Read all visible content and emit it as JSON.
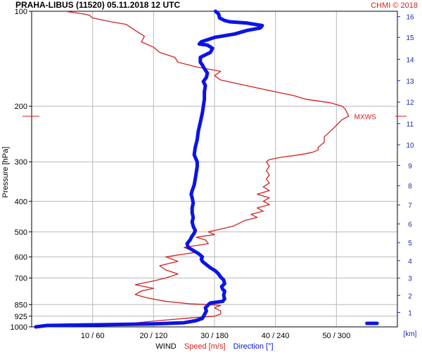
{
  "header": {
    "title": "PRAHA-LIBUS (11520)    05.11.2018 12 UTC",
    "credit": "CHMI © 2018"
  },
  "colors": {
    "speed": "#d42020",
    "direction": "#0a14e6",
    "km_axis": "#1a2aaa",
    "grid": "#b8b8b8",
    "frame": "#000000",
    "credit": "#d42020"
  },
  "chart_data": {
    "type": "line",
    "title": "PRAHA-LIBUS (11520)    05.11.2018 12 UTC",
    "y_axis": {
      "label": "Pressure [hPa]",
      "scale": "log",
      "range": [
        1000,
        100
      ],
      "ticks": [
        100,
        200,
        300,
        400,
        500,
        600,
        700,
        850,
        925,
        1000
      ]
    },
    "x_axis": {
      "label_prefix": "WIND",
      "label_speed": "Speed [m/s]",
      "label_direction": "Direction [°]",
      "speed_range": [
        0,
        60
      ],
      "direction_range": [
        0,
        360
      ],
      "ticks": [
        "10 / 60",
        "20 / 120",
        "30 / 180",
        "40 / 240",
        "50 / 300"
      ]
    },
    "km_axis": {
      "unit": "[km]",
      "ticks": [
        {
          "km": 1,
          "hpa": 900
        },
        {
          "km": 2,
          "hpa": 795
        },
        {
          "km": 3,
          "hpa": 701
        },
        {
          "km": 4,
          "hpa": 617
        },
        {
          "km": 5,
          "hpa": 541
        },
        {
          "km": 6,
          "hpa": 472
        },
        {
          "km": 7,
          "hpa": 411
        },
        {
          "km": 8,
          "hpa": 357
        },
        {
          "km": 9,
          "hpa": 308
        },
        {
          "km": 10,
          "hpa": 265
        },
        {
          "km": 11,
          "hpa": 227
        },
        {
          "km": 12,
          "hpa": 194
        },
        {
          "km": 13,
          "hpa": 166
        },
        {
          "km": 14,
          "hpa": 142
        },
        {
          "km": 15,
          "hpa": 121
        },
        {
          "km": 16,
          "hpa": 104
        }
      ]
    },
    "annotation": {
      "text": "MXWS",
      "hpa": 215
    },
    "series": [
      {
        "name": "Speed [m/s]",
        "unit": "m/s",
        "points": [
          [
            0.3,
            1000
          ],
          [
            9,
            990
          ],
          [
            16,
            975
          ],
          [
            21,
            955
          ],
          [
            26,
            937
          ],
          [
            30,
            925
          ],
          [
            31,
            910
          ],
          [
            31,
            890
          ],
          [
            30,
            870
          ],
          [
            31,
            855
          ],
          [
            29,
            850
          ],
          [
            26,
            845
          ],
          [
            22,
            830
          ],
          [
            19,
            810
          ],
          [
            17,
            790
          ],
          [
            18,
            770
          ],
          [
            20,
            755
          ],
          [
            17,
            735
          ],
          [
            20,
            715
          ],
          [
            22,
            700
          ],
          [
            24,
            680
          ],
          [
            22,
            660
          ],
          [
            21,
            640
          ],
          [
            24,
            620
          ],
          [
            22,
            600
          ],
          [
            27,
            580
          ],
          [
            25,
            560
          ],
          [
            29,
            545
          ],
          [
            28.5,
            530
          ],
          [
            27,
            520
          ],
          [
            30,
            510
          ],
          [
            29,
            500
          ],
          [
            31,
            490
          ],
          [
            33,
            480
          ],
          [
            34,
            470
          ],
          [
            35,
            460
          ],
          [
            37,
            450
          ],
          [
            36,
            440
          ],
          [
            38,
            430
          ],
          [
            37,
            420
          ],
          [
            39,
            410
          ],
          [
            38,
            400
          ],
          [
            39,
            390
          ],
          [
            37,
            380
          ],
          [
            39,
            370
          ],
          [
            38,
            360
          ],
          [
            39,
            350
          ],
          [
            38.5,
            340
          ],
          [
            39,
            330
          ],
          [
            38.5,
            320
          ],
          [
            39,
            310
          ],
          [
            38.5,
            300
          ],
          [
            39,
            295
          ],
          [
            41,
            290
          ],
          [
            44,
            285
          ],
          [
            46,
            280
          ],
          [
            47,
            275
          ],
          [
            47,
            270
          ],
          [
            48,
            260
          ],
          [
            48,
            250
          ],
          [
            49,
            240
          ],
          [
            50,
            230
          ],
          [
            51,
            220
          ],
          [
            52,
            215
          ],
          [
            51.5,
            205
          ],
          [
            51,
            200
          ],
          [
            49,
            195
          ],
          [
            45,
            190
          ],
          [
            43,
            185
          ],
          [
            40,
            180
          ],
          [
            37,
            175
          ],
          [
            34,
            170
          ],
          [
            31,
            165
          ],
          [
            30,
            160
          ],
          [
            31,
            155
          ],
          [
            27,
            150
          ],
          [
            24,
            145
          ],
          [
            23.5,
            140
          ],
          [
            21,
            135
          ],
          [
            20,
            130
          ],
          [
            18,
            125
          ],
          [
            18.5,
            120
          ],
          [
            17,
            115
          ],
          [
            15.5,
            110
          ],
          [
            13,
            108
          ],
          [
            10,
            105
          ],
          [
            9.5,
            103
          ],
          [
            8.5,
            102
          ],
          [
            5.5,
            100
          ]
        ]
      },
      {
        "name": "Direction [°]",
        "unit": "deg",
        "points": [
          [
            4,
            1000
          ],
          [
            15,
            990
          ],
          [
            60,
            985
          ],
          [
            120,
            978
          ],
          [
            150,
            970
          ],
          [
            162,
            955
          ],
          [
            168,
            940
          ],
          [
            170,
            915
          ],
          [
            172,
            890
          ],
          [
            171,
            870
          ],
          [
            173,
            858
          ],
          [
            174,
            850
          ],
          [
            176,
            840
          ],
          [
            188,
            830
          ],
          [
            190,
            815
          ],
          [
            189,
            795
          ],
          [
            190,
            770
          ],
          [
            188,
            760
          ],
          [
            187,
            745
          ],
          [
            190,
            730
          ],
          [
            189,
            710
          ],
          [
            186,
            695
          ],
          [
            184,
            680
          ],
          [
            181,
            665
          ],
          [
            176,
            650
          ],
          [
            172,
            635
          ],
          [
            168,
            620
          ],
          [
            167,
            610
          ],
          [
            168,
            600
          ],
          [
            164,
            585
          ],
          [
            158,
            570
          ],
          [
            154,
            560
          ],
          [
            153,
            545
          ],
          [
            156,
            530
          ],
          [
            158,
            515
          ],
          [
            160,
            505
          ],
          [
            161,
            495
          ],
          [
            159,
            480
          ],
          [
            158,
            465
          ],
          [
            159,
            450
          ],
          [
            158,
            435
          ],
          [
            158,
            420
          ],
          [
            159,
            405
          ],
          [
            158,
            390
          ],
          [
            157,
            380
          ],
          [
            158,
            370
          ],
          [
            160,
            355
          ],
          [
            161,
            340
          ],
          [
            162,
            325
          ],
          [
            163,
            310
          ],
          [
            163,
            300
          ],
          [
            160,
            285
          ],
          [
            161,
            270
          ],
          [
            163,
            255
          ],
          [
            164,
            240
          ],
          [
            166,
            225
          ],
          [
            168,
            210
          ],
          [
            169,
            200
          ],
          [
            170,
            190
          ],
          [
            170,
            180
          ],
          [
            171,
            172
          ],
          [
            169,
            167
          ],
          [
            172,
            162
          ],
          [
            173,
            157
          ],
          [
            170,
            152
          ],
          [
            168,
            148
          ],
          [
            166,
            145
          ],
          [
            166,
            140
          ],
          [
            172,
            137
          ],
          [
            176,
            135
          ],
          [
            178,
            131
          ],
          [
            173,
            128
          ],
          [
            165,
            127
          ],
          [
            167,
            125
          ],
          [
            180,
            121
          ],
          [
            200,
            118
          ],
          [
            212,
            115
          ],
          [
            225,
            113
          ],
          [
            227,
            111
          ],
          [
            212,
            109
          ],
          [
            195,
            108
          ],
          [
            190,
            107
          ],
          [
            185,
            105
          ],
          [
            184,
            102
          ],
          [
            181,
            100
          ]
        ]
      }
    ],
    "surface_marker": {
      "direction_from": 330,
      "direction_to": 340,
      "km": 0.3
    }
  }
}
